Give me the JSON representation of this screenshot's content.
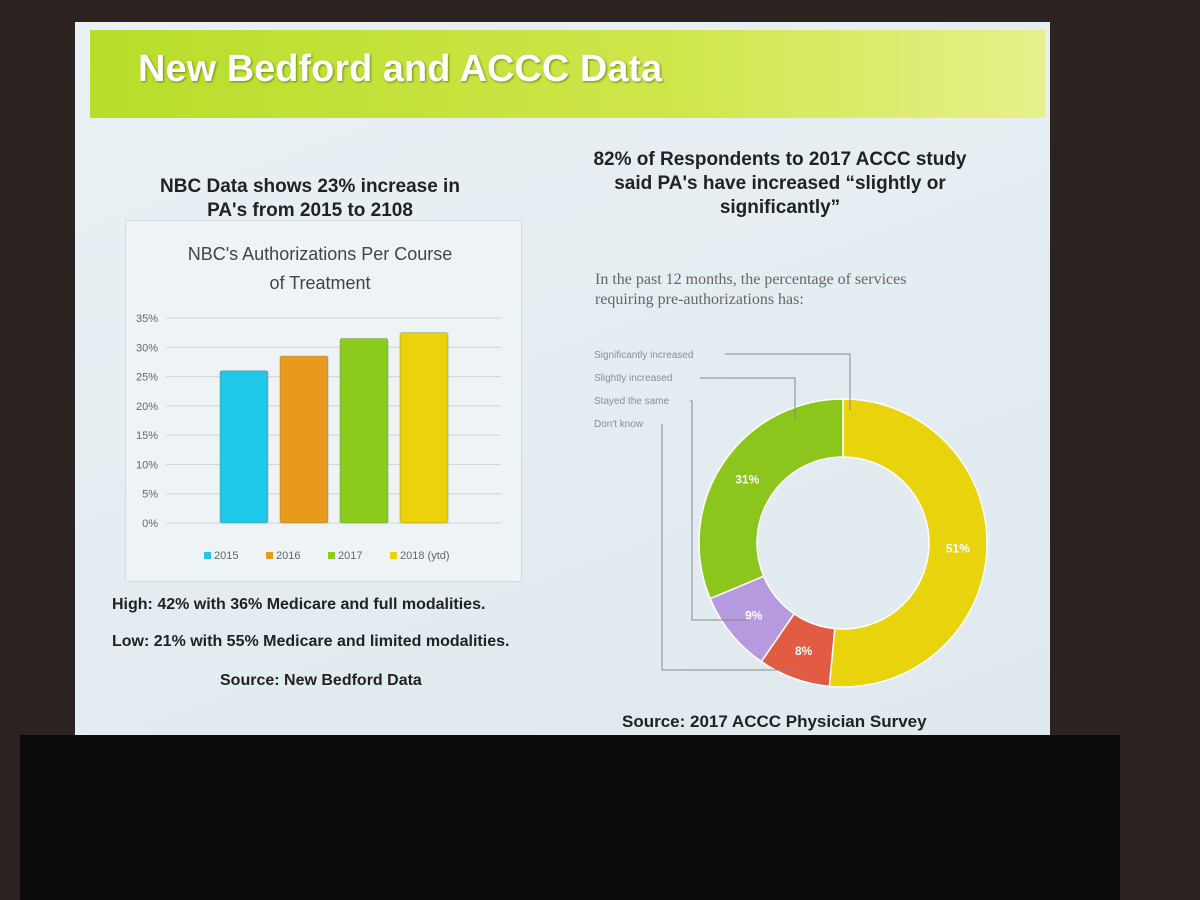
{
  "slide": {
    "title": "New Bedford and ACCC Data",
    "left_heading": "NBC Data shows 23% increase in PA's from 2015 to 2108",
    "notes": [
      "High:  42% with 36% Medicare and full modalities.",
      "Low:  21% with 55% Medicare and limited modalities."
    ],
    "left_source": "Source:  New Bedford Data",
    "right_heading": "82% of Respondents to 2017 ACCC study said PA's have increased “slightly or significantly”",
    "right_source": "Source:  2017 ACCC Physician Survey"
  },
  "chart_data": [
    {
      "type": "bar",
      "title": "NBC's Authorizations Per Course of Treatment",
      "categories": [
        "2015",
        "2016",
        "2017",
        "2018 (ytd)"
      ],
      "values": [
        26,
        28.5,
        31.5,
        32.5
      ],
      "colors": [
        "#1ec8e6",
        "#e89a1c",
        "#8ccc1e",
        "#ecd20a"
      ],
      "ylim": [
        0,
        35
      ],
      "yticks": [
        {
          "value": 0,
          "label": "0%"
        },
        {
          "value": 5,
          "label": "5%"
        },
        {
          "value": 10,
          "label": "10%"
        },
        {
          "value": 15,
          "label": "15%"
        },
        {
          "value": 20,
          "label": "20%"
        },
        {
          "value": 25,
          "label": "25%"
        },
        {
          "value": 30,
          "label": "30%"
        },
        {
          "value": 35,
          "label": "35%"
        }
      ],
      "grid": true,
      "legend": "bottom"
    },
    {
      "type": "donut",
      "title": "In the past 12 months, the percentage of services requiring pre-authorizations has:",
      "categories": [
        "Significantly increased",
        "Slightly increased",
        "Stayed the same",
        "Don't know"
      ],
      "values": [
        51,
        31,
        9,
        8
      ],
      "value_labels": [
        "51%",
        "31%",
        "9%",
        "8%"
      ],
      "colors": [
        "#e8d30c",
        "#8cc61c",
        "#b59ae0",
        "#e25b43"
      ]
    }
  ]
}
